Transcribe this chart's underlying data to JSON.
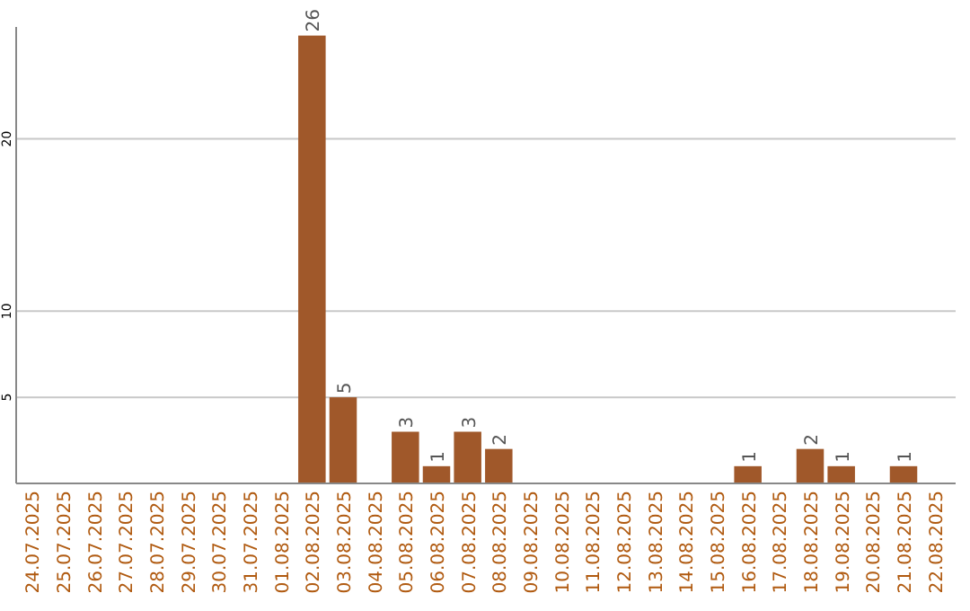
{
  "chart_data": {
    "type": "bar",
    "categories": [
      "24.07.2025",
      "25.07.2025",
      "26.07.2025",
      "27.07.2025",
      "28.07.2025",
      "29.07.2025",
      "30.07.2025",
      "31.07.2025",
      "01.08.2025",
      "02.08.2025",
      "03.08.2025",
      "04.08.2025",
      "05.08.2025",
      "06.08.2025",
      "07.08.2025",
      "08.08.2025",
      "09.08.2025",
      "10.08.2025",
      "11.08.2025",
      "12.08.2025",
      "13.08.2025",
      "14.08.2025",
      "15.08.2025",
      "16.08.2025",
      "17.08.2025",
      "18.08.2025",
      "19.08.2025",
      "20.08.2025",
      "21.08.2025",
      "22.08.2025"
    ],
    "values": [
      null,
      null,
      null,
      null,
      null,
      null,
      null,
      null,
      null,
      26,
      5,
      null,
      3,
      1,
      3,
      2,
      null,
      null,
      null,
      null,
      null,
      null,
      null,
      1,
      null,
      2,
      1,
      null,
      1,
      null
    ],
    "value_labels": [
      null,
      null,
      null,
      null,
      null,
      null,
      null,
      null,
      null,
      "26",
      "5",
      null,
      "3",
      "1",
      "3",
      "2",
      null,
      null,
      null,
      null,
      null,
      null,
      null,
      "1",
      null,
      "2",
      "1",
      null,
      "1",
      null
    ],
    "color": "#a0582a",
    "ylim": [
      0,
      26.5
    ],
    "yticks": [
      5,
      10,
      20
    ],
    "grid": "y"
  }
}
